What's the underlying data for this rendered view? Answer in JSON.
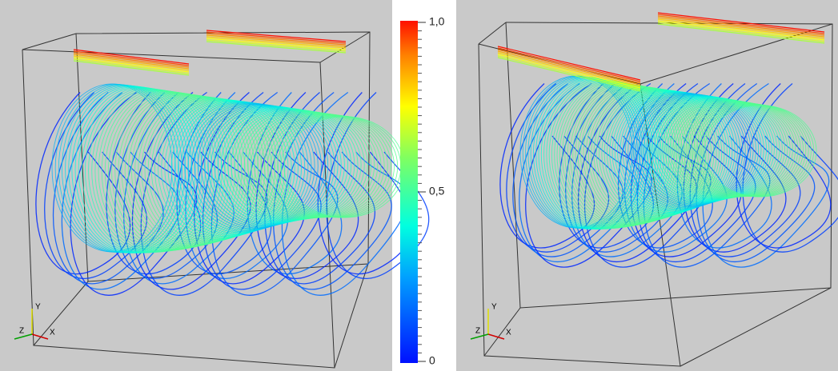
{
  "colorbar": {
    "ticks": [
      0,
      {
        "value": 0.5,
        "label": "0,5"
      },
      {
        "value": 1,
        "label": "1,0"
      }
    ]
  },
  "panels": [
    {
      "axes": {
        "x": "X",
        "y": "Y",
        "z": "Z"
      }
    },
    {
      "axes": {
        "x": "X",
        "y": "Y",
        "z": "Z"
      }
    }
  ]
}
